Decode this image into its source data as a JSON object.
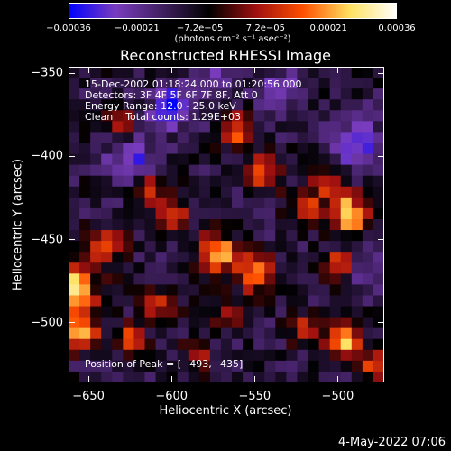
{
  "chart_data": {
    "type": "heatmap",
    "title": "Reconstructed RHESSI Image",
    "xlabel": "Heliocentric X (arcsec)",
    "ylabel": "Heliocentric Y (arcsec)",
    "xlim": [
      -662,
      -472
    ],
    "ylim": [
      -536,
      -346
    ],
    "x_ticks": [
      -650,
      -600,
      -550,
      -500
    ],
    "x_tick_labels": [
      "−650",
      "−600",
      "−550",
      "−500"
    ],
    "y_ticks": [
      -350,
      -400,
      -450,
      -500
    ],
    "y_tick_labels": [
      "−350",
      "−400",
      "−450",
      "−500"
    ],
    "colorbar": {
      "range": [
        -0.00036,
        0.00036
      ],
      "ticks": [
        -0.00036,
        -0.00021,
        -7.2e-05,
        7.2e-05,
        0.00021,
        0.00036
      ],
      "tick_labels": [
        "−0.00036",
        "−0.00021",
        "−7.2e−05",
        "7.2e−05",
        "0.00021",
        "0.00036"
      ],
      "unit_label": "(photons cm⁻² s⁻¹ asec⁻²)"
    },
    "annotations": {
      "time_range": "15-Dec-2002 01:18:24.000 to 01:20:56.000",
      "detectors": "Detectors: 3F 4F 5F 6F 7F 8F, Att 0",
      "energy_range": "Energy Range: 12.0 - 25.0 keV",
      "clean_counts": "Clean    Total counts: 1.29E+03",
      "peak_position": "Position of Peak = [−493,−435]"
    },
    "peak": {
      "x": -493,
      "y": -435
    },
    "colormap": [
      "#0000ff",
      "#7a3cbf",
      "#402060",
      "#000000",
      "#a01010",
      "#ff5000",
      "#ffe060",
      "#ffffff"
    ],
    "grid_rows": 29,
    "grid_cols": 29,
    "blobs": [
      {
        "x": -493,
        "y": -435,
        "amp": 1.05,
        "sigma": 7
      },
      {
        "x": -503,
        "y": -415,
        "amp": 0.55,
        "sigma": 9
      },
      {
        "x": -660,
        "y": -480,
        "amp": 1.0,
        "sigma": 10
      },
      {
        "x": -655,
        "y": -505,
        "amp": 0.8,
        "sigma": 8
      },
      {
        "x": -640,
        "y": -455,
        "amp": 0.55,
        "sigma": 8
      },
      {
        "x": -625,
        "y": -510,
        "amp": 0.75,
        "sigma": 6
      },
      {
        "x": -607,
        "y": -490,
        "amp": 0.5,
        "sigma": 7
      },
      {
        "x": -573,
        "y": -458,
        "amp": 0.9,
        "sigma": 8
      },
      {
        "x": -550,
        "y": -470,
        "amp": 0.75,
        "sigma": 8
      },
      {
        "x": -560,
        "y": -385,
        "amp": 0.7,
        "sigma": 7
      },
      {
        "x": -545,
        "y": -410,
        "amp": 0.65,
        "sigma": 7
      },
      {
        "x": -520,
        "y": -430,
        "amp": 0.55,
        "sigma": 7
      },
      {
        "x": -600,
        "y": -435,
        "amp": 0.6,
        "sigma": 7
      },
      {
        "x": -612,
        "y": -420,
        "amp": 0.5,
        "sigma": 6
      },
      {
        "x": -497,
        "y": -512,
        "amp": 0.95,
        "sigma": 7
      },
      {
        "x": -520,
        "y": -505,
        "amp": 0.6,
        "sigma": 6
      },
      {
        "x": -478,
        "y": -525,
        "amp": 0.6,
        "sigma": 6
      },
      {
        "x": -585,
        "y": -520,
        "amp": 0.45,
        "sigma": 6
      },
      {
        "x": -565,
        "y": -495,
        "amp": 0.5,
        "sigma": 6
      },
      {
        "x": -630,
        "y": -380,
        "amp": 0.45,
        "sigma": 6
      },
      {
        "x": -500,
        "y": -465,
        "amp": 0.6,
        "sigma": 6
      },
      {
        "x": -490,
        "y": -395,
        "amp": -0.55,
        "sigma": 12
      },
      {
        "x": -625,
        "y": -400,
        "amp": -0.45,
        "sigma": 10
      },
      {
        "x": -600,
        "y": -370,
        "amp": -0.6,
        "sigma": 9
      },
      {
        "x": -575,
        "y": -355,
        "amp": -0.35,
        "sigma": 8
      },
      {
        "x": -535,
        "y": -360,
        "amp": -0.35,
        "sigma": 9
      },
      {
        "x": -480,
        "y": -470,
        "amp": -0.3,
        "sigma": 8
      }
    ]
  },
  "timestamp": "4-May-2022 07:06"
}
